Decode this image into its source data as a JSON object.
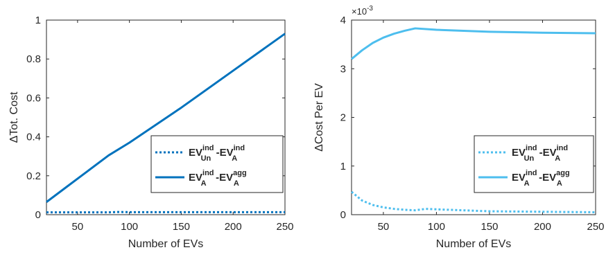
{
  "chart_data": [
    {
      "type": "line",
      "xlabel": "Number of EVs",
      "ylabel": "ΔTot. Cost",
      "xlim": [
        20,
        250
      ],
      "ylim": [
        0,
        1
      ],
      "xticks": [
        50,
        100,
        150,
        200,
        250
      ],
      "yticks": [
        0,
        0.2,
        0.4,
        0.6,
        0.8,
        1
      ],
      "ytick_labels": [
        "0",
        "0.2",
        "0.4",
        "0.6",
        "0.8",
        "1"
      ],
      "grid": false,
      "legend_position": "lower-right",
      "series": [
        {
          "legend": {
            "a": "EV",
            "a_sup": "ind",
            "a_sub": "Un",
            "sep": "-",
            "b": "EV",
            "b_sup": "ind",
            "b_sub": "A"
          },
          "color": "#0072BD",
          "style": "dotted",
          "x": [
            20,
            40,
            60,
            80,
            90,
            100,
            150,
            200,
            250
          ],
          "y": [
            0.012,
            0.012,
            0.012,
            0.012,
            0.014,
            0.013,
            0.013,
            0.013,
            0.013
          ]
        },
        {
          "legend": {
            "a": "EV",
            "a_sup": "ind",
            "a_sub": "A",
            "sep": "-",
            "b": "EV",
            "b_sup": "agg",
            "b_sub": "A"
          },
          "color": "#0072BD",
          "style": "solid",
          "x": [
            20,
            40,
            60,
            80,
            100,
            150,
            200,
            250
          ],
          "y": [
            0.065,
            0.145,
            0.225,
            0.305,
            0.37,
            0.55,
            0.74,
            0.93
          ]
        }
      ]
    },
    {
      "type": "line",
      "xlabel": "Number of EVs",
      "ylabel": "ΔCost Per EV",
      "y_exponent_base": "×10",
      "y_exponent_power": "-3",
      "xlim": [
        20,
        250
      ],
      "ylim": [
        0,
        4
      ],
      "xticks": [
        50,
        100,
        150,
        200,
        250
      ],
      "yticks": [
        0,
        1,
        2,
        3,
        4
      ],
      "ytick_labels": [
        "0",
        "1",
        "2",
        "3",
        "4"
      ],
      "grid": false,
      "legend_position": "lower-right",
      "series": [
        {
          "legend": {
            "a": "EV",
            "a_sup": "ind",
            "a_sub": "Un",
            "sep": "-",
            "b": "EV",
            "b_sup": "ind",
            "b_sub": "A"
          },
          "color": "#4DBEEE",
          "style": "dotted",
          "x": [
            20,
            30,
            40,
            50,
            60,
            70,
            80,
            90,
            100,
            150,
            200,
            250
          ],
          "y": [
            0.47,
            0.29,
            0.2,
            0.15,
            0.12,
            0.1,
            0.09,
            0.12,
            0.11,
            0.07,
            0.06,
            0.05
          ]
        },
        {
          "legend": {
            "a": "EV",
            "a_sup": "ind",
            "a_sub": "A",
            "sep": "-",
            "b": "EV",
            "b_sup": "agg",
            "b_sub": "A"
          },
          "color": "#4DBEEE",
          "style": "solid",
          "x": [
            20,
            30,
            40,
            50,
            60,
            70,
            80,
            100,
            150,
            200,
            250
          ],
          "y": [
            3.2,
            3.38,
            3.53,
            3.64,
            3.72,
            3.78,
            3.83,
            3.8,
            3.76,
            3.74,
            3.73
          ]
        }
      ]
    }
  ]
}
